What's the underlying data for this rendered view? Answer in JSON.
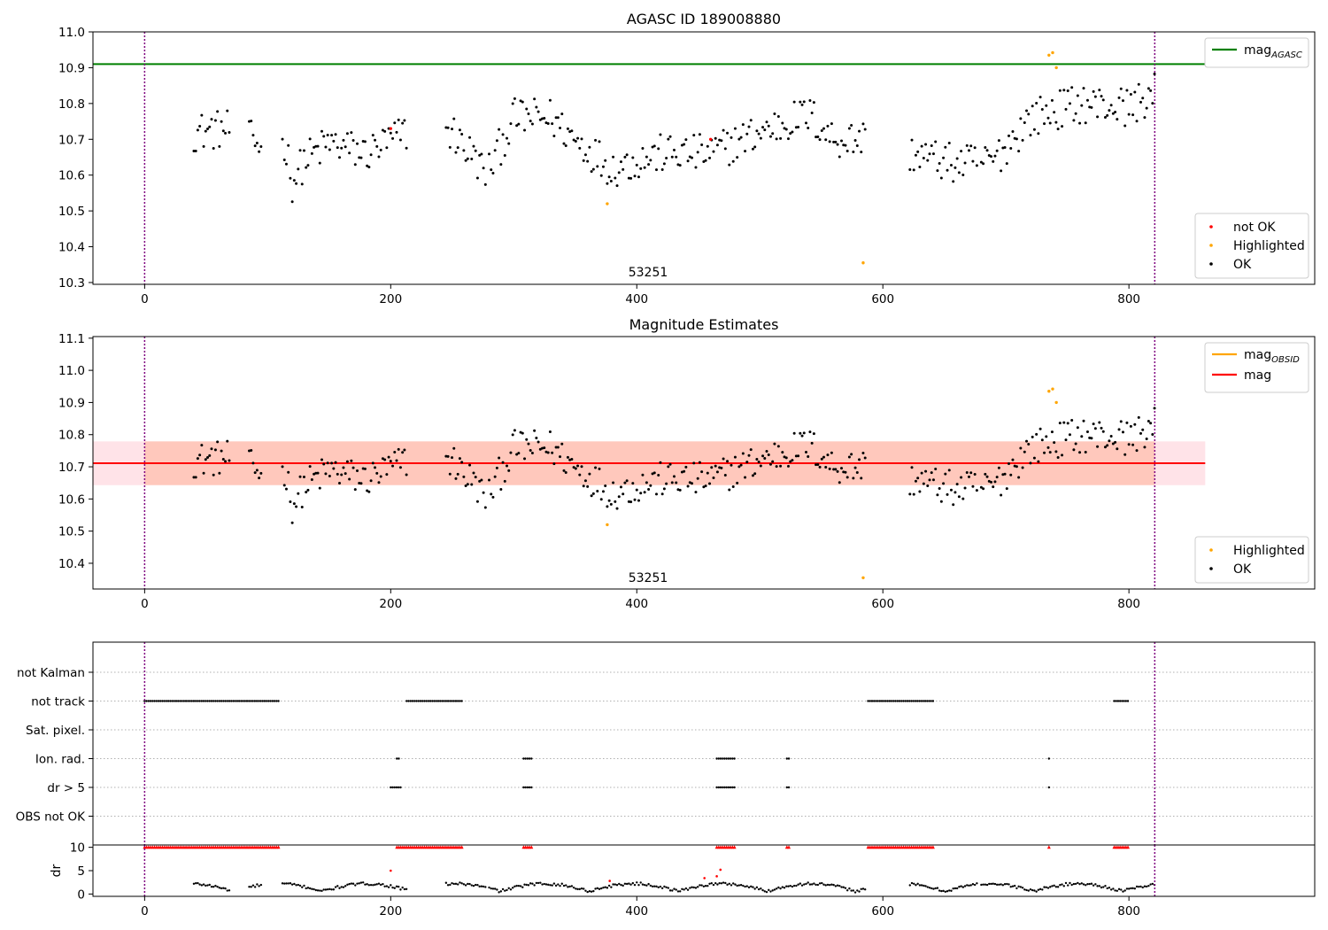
{
  "chart_data": [
    {
      "type": "scatter",
      "title": "AGASC ID 189008880",
      "annotation": "53251",
      "xlim": [
        -42,
        951
      ],
      "ylim": [
        10.295,
        11.0
      ],
      "xticks": [
        0,
        200,
        400,
        600,
        800
      ],
      "yticks": [
        "10.3",
        "10.4",
        "10.5",
        "10.6",
        "10.7",
        "10.8",
        "10.9",
        "11.0"
      ],
      "vlines": [
        0,
        821
      ],
      "hlines": [
        {
          "name": "magAGASC",
          "y": 10.91,
          "x_range": [
            -42,
            862
          ],
          "color": "#008000"
        }
      ],
      "legend_lines": [
        {
          "base": "mag",
          "sub": "AGASC",
          "color": "#008000"
        }
      ],
      "legend_markers": [
        {
          "label": "not OK",
          "color": "#ff0000"
        },
        {
          "label": "Highlighted",
          "color": "#ffa500"
        },
        {
          "label": "OK",
          "color": "#000000"
        }
      ],
      "series": [
        {
          "name": "OK",
          "color": "#000000",
          "segments": [
            [
              40,
              70
            ],
            [
              85,
              95
            ],
            [
              112,
              213
            ],
            [
              245,
              278
            ],
            [
              280,
              587
            ],
            [
              622,
              678
            ],
            [
              680,
              822
            ]
          ]
        },
        {
          "name": "not OK",
          "color": "#ff0000",
          "points": [
            [
              200,
              10.73
            ],
            [
              460,
              10.7
            ]
          ]
        },
        {
          "name": "Highlighted",
          "color": "#ffa500",
          "points": [
            [
              376,
              10.52
            ],
            [
              584,
              10.355
            ],
            [
              735,
              10.935
            ],
            [
              738,
              10.942
            ],
            [
              741,
              10.9
            ]
          ]
        }
      ]
    },
    {
      "type": "scatter",
      "title": "Magnitude Estimates",
      "annotation": "53251",
      "xlim": [
        -42,
        951
      ],
      "ylim": [
        10.32,
        11.105
      ],
      "xticks": [
        0,
        200,
        400,
        600,
        800
      ],
      "yticks": [
        "10.4",
        "10.5",
        "10.6",
        "10.7",
        "10.8",
        "10.9",
        "11.0",
        "11.1"
      ],
      "vlines": [
        0,
        821
      ],
      "mag": 10.711,
      "band_outer": [
        10.643,
        10.779
      ],
      "band_inner": [
        10.643,
        10.779
      ],
      "band_x_range": [
        -42,
        862
      ],
      "hlines": [
        {
          "name": "mag",
          "y": 10.711,
          "x_range": [
            -42,
            862
          ],
          "color": "#ff0000"
        }
      ],
      "legend_lines": [
        {
          "base": "mag",
          "sub": "OBSID",
          "color": "#ffa500"
        },
        {
          "base": "mag",
          "sub": "",
          "color": "#ff0000"
        }
      ],
      "legend_markers": [
        {
          "label": "Highlighted",
          "color": "#ffa500"
        },
        {
          "label": "OK",
          "color": "#000000"
        }
      ],
      "series": [
        {
          "name": "OK",
          "color": "#000000",
          "segments": [
            [
              40,
              70
            ],
            [
              85,
              95
            ],
            [
              112,
              213
            ],
            [
              245,
              278
            ],
            [
              280,
              587
            ],
            [
              622,
              678
            ],
            [
              680,
              822
            ]
          ]
        },
        {
          "name": "Highlighted",
          "color": "#ffa500",
          "points": [
            [
              376,
              10.52
            ],
            [
              584,
              10.355
            ],
            [
              735,
              10.935
            ],
            [
              738,
              10.942
            ],
            [
              741,
              10.9
            ]
          ]
        }
      ]
    },
    {
      "type": "scatter",
      "title": "",
      "xlim": [
        -42,
        951
      ],
      "xticks": [
        0,
        200,
        400,
        600,
        800
      ],
      "vlines": [
        0,
        821
      ],
      "flag_rows": [
        "not Kalman",
        "not track",
        "Sat. pixel.",
        "Ion. rad.",
        "dr > 5",
        "OBS not OK"
      ],
      "flag_segments": {
        "not Kalman": [],
        "not track": [
          [
            0,
            110
          ],
          [
            213,
            258
          ],
          [
            588,
            642
          ],
          [
            788,
            800
          ]
        ],
        "Sat. pixel.": [],
        "Ion. rad.": [
          [
            205,
            208
          ],
          [
            308,
            315
          ],
          [
            465,
            480
          ],
          [
            522,
            524
          ],
          [
            735,
            735
          ]
        ],
        "dr > 5": [
          [
            200,
            208
          ],
          [
            308,
            315
          ],
          [
            465,
            480
          ],
          [
            522,
            524
          ],
          [
            735,
            735
          ]
        ],
        "OBS not OK": []
      },
      "dr_panel": {
        "ylabel": "dr",
        "ylim": [
          -0.5,
          10.5
        ],
        "yticks": [
          "0",
          "5",
          "10"
        ],
        "capped_value": 10,
        "capped_segments": [
          [
            0,
            110
          ],
          [
            205,
            258
          ],
          [
            308,
            315
          ],
          [
            465,
            480
          ],
          [
            522,
            524
          ],
          [
            588,
            642
          ],
          [
            735,
            735
          ],
          [
            788,
            800
          ]
        ],
        "red_points": [
          [
            200,
            5.0
          ],
          [
            378,
            2.8
          ],
          [
            455,
            3.4
          ],
          [
            465,
            3.8
          ],
          [
            468,
            5.2
          ]
        ]
      }
    }
  ]
}
